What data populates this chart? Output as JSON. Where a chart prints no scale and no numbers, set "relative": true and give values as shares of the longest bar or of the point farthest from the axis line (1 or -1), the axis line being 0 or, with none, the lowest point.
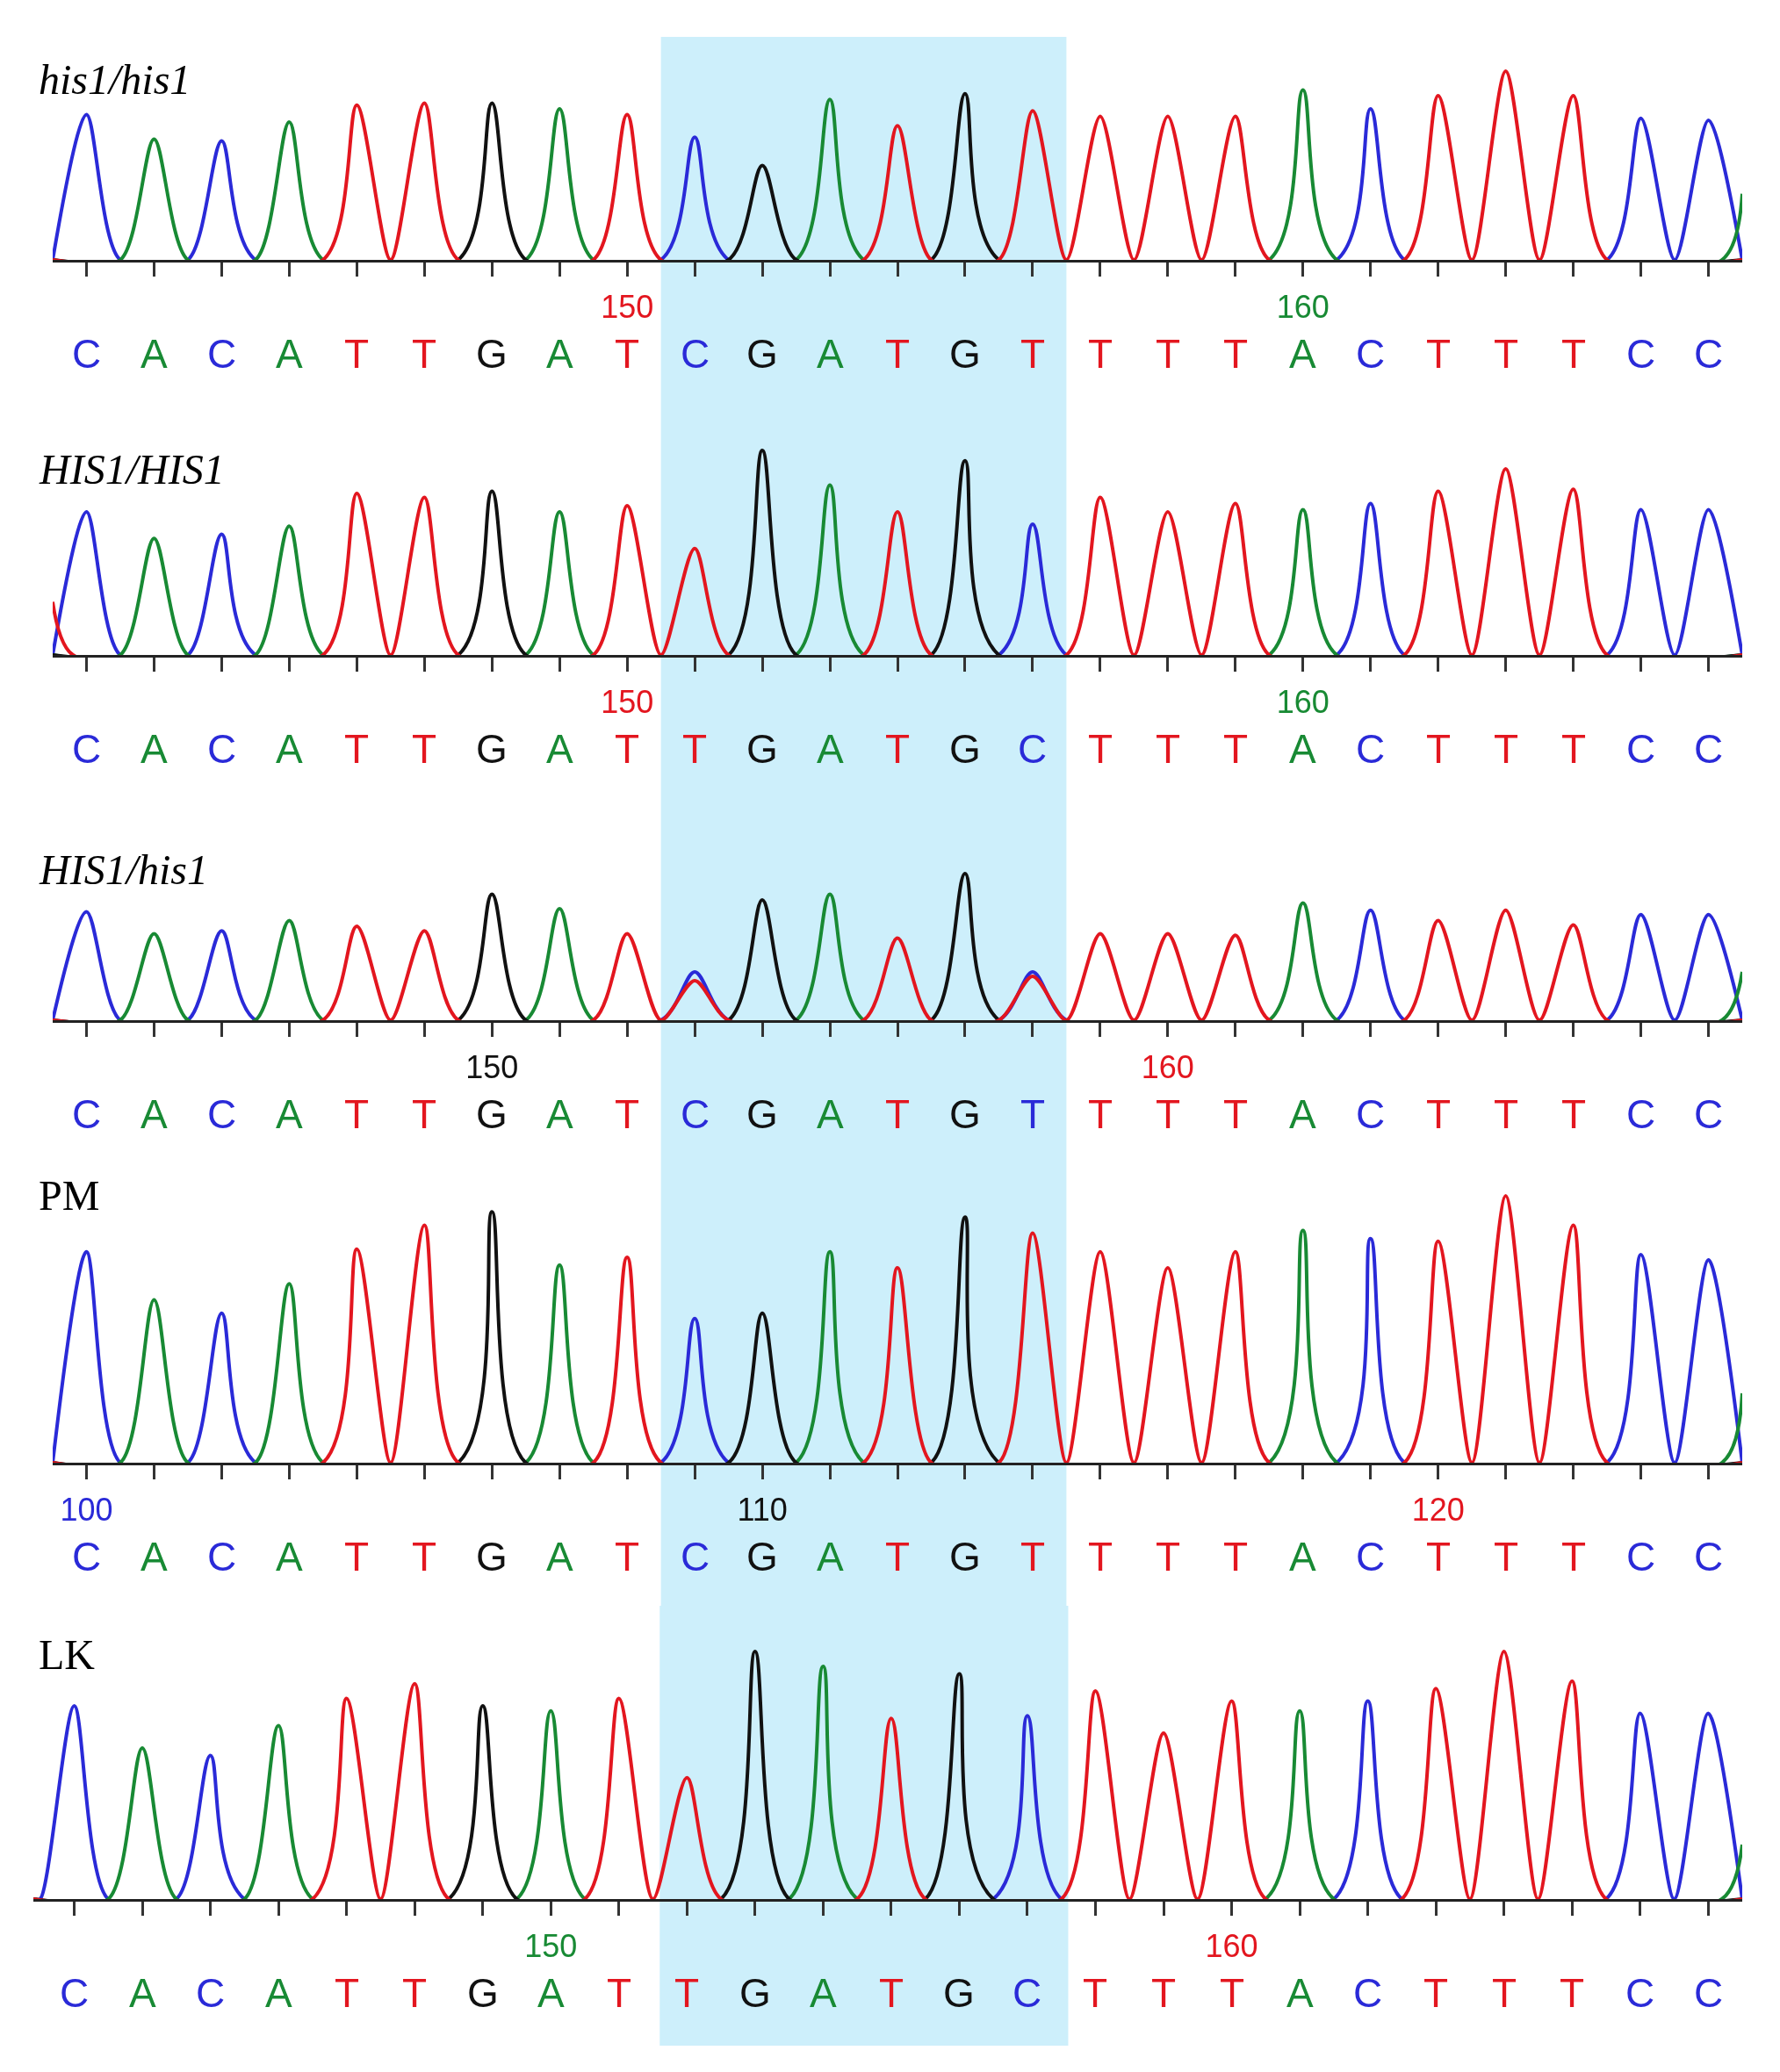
{
  "chart_data": [
    {
      "type": "line",
      "relative": true,
      "title": "his1/his1",
      "xlim": [
        141.5,
        166.5
      ],
      "xticks": [
        {
          "value": 142,
          "label": null
        },
        {
          "value": 143,
          "label": null
        },
        {
          "value": 144,
          "label": null
        },
        {
          "value": 145,
          "label": null
        },
        {
          "value": 146,
          "label": null
        },
        {
          "value": 147,
          "label": null
        },
        {
          "value": 148,
          "label": null
        },
        {
          "value": 149,
          "label": null
        },
        150,
        {
          "value": 151,
          "label": null
        },
        {
          "value": 152,
          "label": null
        },
        {
          "value": 153,
          "label": null
        },
        {
          "value": 154,
          "label": null
        },
        {
          "value": 155,
          "label": null
        },
        {
          "value": 156,
          "label": null
        },
        {
          "value": 157,
          "label": null
        },
        {
          "value": 158,
          "label": null
        },
        {
          "value": 159,
          "label": null
        },
        160,
        {
          "value": 161,
          "label": null
        },
        {
          "value": 162,
          "label": null
        },
        {
          "value": 163,
          "label": null
        },
        {
          "value": 164,
          "label": null
        },
        {
          "value": 165,
          "label": null
        },
        {
          "value": 166,
          "label": null
        }
      ],
      "annotations": [
        "C",
        "A",
        "C",
        "A",
        "T",
        "T",
        "G",
        "A",
        "T",
        "C",
        "G",
        "A",
        "T",
        "G",
        "T",
        "T",
        "T",
        "T",
        "A",
        "C",
        "T",
        "T",
        "T",
        "C",
        "C"
      ],
      "bands": [
        {
          "axis": "x",
          "from": 150.5,
          "to": 156.5,
          "color": "#cdeffb"
        }
      ],
      "series": [
        {
          "color": "#2a2ad8",
          "x": [
            141.5,
            142,
            142.5,
            143.5,
            144,
            144.5,
            150.5,
            151,
            151.5,
            160.5,
            161,
            161.5,
            164.5,
            165,
            165.5,
            166,
            166.5
          ],
          "values": [
            0,
            0.77,
            0,
            0,
            0.63,
            0,
            0,
            0.65,
            0,
            0,
            0.8,
            0,
            0,
            0.75,
            0,
            0.74,
            0
          ]
        },
        {
          "color": "#188a34",
          "x": [
            141.5,
            142.5,
            143,
            143.5,
            144.5,
            145,
            145.5,
            148.5,
            149,
            149.5,
            152.5,
            153,
            153.5,
            159.5,
            160,
            160.5,
            166.2,
            166.5
          ],
          "values": [
            0,
            0,
            0.64,
            0,
            0,
            0.73,
            0,
            0,
            0.8,
            0,
            0,
            0.85,
            0,
            0,
            0.9,
            0,
            0,
            0.35
          ]
        },
        {
          "color": "#111111",
          "x": [
            141.5,
            147.5,
            148,
            148.5,
            151.5,
            152,
            152.5,
            154.5,
            155,
            155.5,
            166.5
          ],
          "values": [
            0,
            0,
            0.83,
            0,
            0,
            0.5,
            0,
            0,
            0.88,
            0,
            0
          ]
        },
        {
          "color": "#e3161f",
          "x": [
            141.5,
            145.5,
            146,
            146.5,
            147,
            147.5,
            149.5,
            150,
            150.5,
            153.5,
            154,
            154.5,
            155.5,
            156,
            156.5,
            157,
            157.5,
            158,
            158.5,
            159,
            159.5,
            161.5,
            162,
            162.5,
            163,
            163.5,
            164,
            164.5,
            166.5
          ],
          "values": [
            0,
            0,
            0.82,
            0,
            0.83,
            0,
            0,
            0.77,
            0,
            0,
            0.71,
            0,
            0,
            0.79,
            0,
            0.76,
            0,
            0.76,
            0,
            0.76,
            0,
            0,
            0.87,
            0,
            1.0,
            0,
            0.87,
            0,
            0
          ]
        }
      ]
    },
    {
      "type": "line",
      "relative": true,
      "title": "HIS1/HIS1",
      "xlim": [
        141.5,
        166.5
      ],
      "xticks": [
        {
          "value": 142,
          "label": null
        },
        {
          "value": 143,
          "label": null
        },
        {
          "value": 144,
          "label": null
        },
        {
          "value": 145,
          "label": null
        },
        {
          "value": 146,
          "label": null
        },
        {
          "value": 147,
          "label": null
        },
        {
          "value": 148,
          "label": null
        },
        {
          "value": 149,
          "label": null
        },
        150,
        {
          "value": 151,
          "label": null
        },
        {
          "value": 152,
          "label": null
        },
        {
          "value": 153,
          "label": null
        },
        {
          "value": 154,
          "label": null
        },
        {
          "value": 155,
          "label": null
        },
        {
          "value": 156,
          "label": null
        },
        {
          "value": 157,
          "label": null
        },
        {
          "value": 158,
          "label": null
        },
        {
          "value": 159,
          "label": null
        },
        160,
        {
          "value": 161,
          "label": null
        },
        {
          "value": 162,
          "label": null
        },
        {
          "value": 163,
          "label": null
        },
        {
          "value": 164,
          "label": null
        },
        {
          "value": 165,
          "label": null
        },
        {
          "value": 166,
          "label": null
        }
      ],
      "annotations": [
        "C",
        "A",
        "C",
        "A",
        "T",
        "T",
        "G",
        "A",
        "T",
        "T",
        "G",
        "A",
        "T",
        "G",
        "C",
        "T",
        "T",
        "T",
        "A",
        "C",
        "T",
        "T",
        "T",
        "C",
        "C"
      ],
      "bands": [
        {
          "axis": "x",
          "from": 150.5,
          "to": 156.5,
          "color": "#cdeffb"
        }
      ],
      "series": [
        {
          "color": "#2a2ad8",
          "x": [
            141.5,
            142,
            142.5,
            143.5,
            144,
            144.5,
            155.5,
            156,
            156.5,
            160.5,
            161,
            161.5,
            164.5,
            165,
            165.5,
            166,
            166.5
          ],
          "values": [
            0,
            0.7,
            0,
            0,
            0.59,
            0,
            0,
            0.64,
            0,
            0,
            0.74,
            0,
            0,
            0.71,
            0,
            0.71,
            0
          ]
        },
        {
          "color": "#188a34",
          "x": [
            141.5,
            142.5,
            143,
            143.5,
            144.5,
            145,
            145.5,
            148.5,
            149,
            149.5,
            152.5,
            153,
            153.5,
            159.5,
            160,
            160.5,
            166.5
          ],
          "values": [
            0,
            0,
            0.57,
            0,
            0,
            0.63,
            0,
            0,
            0.7,
            0,
            0,
            0.83,
            0,
            0,
            0.71,
            0,
            0
          ]
        },
        {
          "color": "#111111",
          "x": [
            141.5,
            147.5,
            148,
            148.5,
            151.5,
            152,
            152.5,
            154.5,
            155,
            155.5,
            166.5
          ],
          "values": [
            0,
            0,
            0.8,
            0,
            0,
            1.0,
            0,
            0,
            0.95,
            0,
            0
          ]
        },
        {
          "color": "#e3161f",
          "x": [
            141.5,
            141.8,
            145.5,
            146,
            146.5,
            147,
            147.5,
            149.5,
            150,
            150.5,
            151,
            151.5,
            153.5,
            154,
            154.5,
            156.5,
            157,
            157.5,
            158,
            158.5,
            159,
            159.5,
            161.5,
            162,
            162.5,
            163,
            163.5,
            164,
            164.5,
            166.5
          ],
          "values": [
            0.26,
            0,
            0,
            0.79,
            0,
            0.77,
            0,
            0,
            0.73,
            0,
            0.52,
            0,
            0,
            0.7,
            0,
            0,
            0.77,
            0,
            0.7,
            0,
            0.74,
            0,
            0,
            0.8,
            0,
            0.91,
            0,
            0.81,
            0,
            0
          ]
        }
      ]
    },
    {
      "type": "line",
      "relative": true,
      "title": "HIS1/his1",
      "xlim": [
        143.5,
        168.5
      ],
      "xticks": [
        {
          "value": 144,
          "label": null
        },
        {
          "value": 145,
          "label": null
        },
        {
          "value": 146,
          "label": null
        },
        {
          "value": 147,
          "label": null
        },
        {
          "value": 148,
          "label": null
        },
        {
          "value": 149,
          "label": null
        },
        150,
        {
          "value": 151,
          "label": null
        },
        {
          "value": 152,
          "label": null
        },
        {
          "value": 153,
          "label": null
        },
        {
          "value": 154,
          "label": null
        },
        {
          "value": 155,
          "label": null
        },
        {
          "value": 156,
          "label": null
        },
        {
          "value": 157,
          "label": null
        },
        {
          "value": 158,
          "label": null
        },
        {
          "value": 159,
          "label": null
        },
        160,
        {
          "value": 161,
          "label": null
        },
        {
          "value": 162,
          "label": null
        },
        {
          "value": 163,
          "label": null
        },
        {
          "value": 164,
          "label": null
        },
        {
          "value": 165,
          "label": null
        },
        {
          "value": 166,
          "label": null
        },
        {
          "value": 167,
          "label": null
        },
        {
          "value": 168,
          "label": null
        }
      ],
      "annotations": [
        "C",
        "A",
        "C",
        "A",
        "T",
        "T",
        "G",
        "A",
        "T",
        "C",
        "G",
        "A",
        "T",
        "G",
        "T",
        "T",
        "T",
        "T",
        "A",
        "C",
        "T",
        "T",
        "T",
        "C",
        "C"
      ],
      "bands": [
        {
          "axis": "x",
          "from": 152.5,
          "to": 158.5,
          "color": "#cdeffb"
        }
      ],
      "series": [
        {
          "color": "#2a2ad8",
          "x": [
            143.5,
            144,
            144.5,
            145.5,
            146,
            146.5,
            152.5,
            153,
            153.5,
            157.5,
            158,
            158.5,
            162.5,
            163,
            163.5,
            166.5,
            167,
            167.5,
            168,
            168.5
          ],
          "values": [
            0,
            0.74,
            0,
            0,
            0.61,
            0,
            0,
            0.33,
            0,
            0,
            0.33,
            0,
            0,
            0.75,
            0,
            0,
            0.72,
            0,
            0.72,
            0
          ]
        },
        {
          "color": "#188a34",
          "x": [
            143.5,
            144.5,
            145,
            145.5,
            146.5,
            147,
            147.5,
            150.5,
            151,
            151.5,
            154.5,
            155,
            155.5,
            161.5,
            162,
            162.5,
            168.2,
            168.5
          ],
          "values": [
            0,
            0,
            0.59,
            0,
            0,
            0.68,
            0,
            0,
            0.76,
            0,
            0,
            0.86,
            0,
            0,
            0.8,
            0,
            0,
            0.33
          ]
        },
        {
          "color": "#111111",
          "x": [
            143.5,
            149.5,
            150,
            150.5,
            153.5,
            154,
            154.5,
            156.5,
            157,
            157.5,
            168.5
          ],
          "values": [
            0,
            0,
            0.86,
            0,
            0,
            0.82,
            0,
            0,
            1.0,
            0,
            0
          ]
        },
        {
          "color": "#e3161f",
          "x": [
            143.5,
            147.5,
            148,
            148.5,
            149,
            149.5,
            151.5,
            152,
            152.5,
            153,
            153.5,
            155.5,
            156,
            156.5,
            157.5,
            158,
            158.5,
            159,
            159.5,
            160,
            160.5,
            161,
            161.5,
            163.5,
            164,
            164.5,
            165,
            165.5,
            166,
            166.5,
            168.5
          ],
          "values": [
            0,
            0,
            0.64,
            0,
            0.61,
            0,
            0,
            0.59,
            0,
            0.27,
            0,
            0,
            0.56,
            0,
            0,
            0.3,
            0,
            0.59,
            0,
            0.59,
            0,
            0.58,
            0,
            0,
            0.68,
            0,
            0.75,
            0,
            0.65,
            0,
            0
          ]
        }
      ]
    },
    {
      "type": "line",
      "relative": true,
      "title": "PM",
      "xlim": [
        99.5,
        124.5
      ],
      "xticks": [
        100,
        {
          "value": 101,
          "label": null
        },
        {
          "value": 102,
          "label": null
        },
        {
          "value": 103,
          "label": null
        },
        {
          "value": 104,
          "label": null
        },
        {
          "value": 105,
          "label": null
        },
        {
          "value": 106,
          "label": null
        },
        {
          "value": 107,
          "label": null
        },
        {
          "value": 108,
          "label": null
        },
        {
          "value": 109,
          "label": null
        },
        110,
        {
          "value": 111,
          "label": null
        },
        {
          "value": 112,
          "label": null
        },
        {
          "value": 113,
          "label": null
        },
        {
          "value": 114,
          "label": null
        },
        {
          "value": 115,
          "label": null
        },
        {
          "value": 116,
          "label": null
        },
        {
          "value": 117,
          "label": null
        },
        {
          "value": 118,
          "label": null
        },
        {
          "value": 119,
          "label": null
        },
        120,
        {
          "value": 121,
          "label": null
        },
        {
          "value": 122,
          "label": null
        },
        {
          "value": 123,
          "label": null
        },
        {
          "value": 124,
          "label": null
        }
      ],
      "annotations": [
        "C",
        "A",
        "C",
        "A",
        "T",
        "T",
        "G",
        "A",
        "T",
        "C",
        "G",
        "A",
        "T",
        "G",
        "T",
        "T",
        "T",
        "T",
        "A",
        "C",
        "T",
        "T",
        "T",
        "C",
        "C"
      ],
      "bands": [
        {
          "axis": "x",
          "from": 108.5,
          "to": 114.5,
          "color": "#cdeffb"
        }
      ],
      "series": [
        {
          "color": "#2a2ad8",
          "x": [
            99.5,
            100,
            100.5,
            101.5,
            102,
            102.5,
            108.5,
            109,
            109.5,
            118.5,
            119,
            119.5,
            122.5,
            123,
            123.5,
            124,
            124.5
          ],
          "values": [
            0,
            0.79,
            0,
            0,
            0.56,
            0,
            0,
            0.54,
            0,
            0,
            0.84,
            0,
            0,
            0.78,
            0,
            0.76,
            0
          ]
        },
        {
          "color": "#188a34",
          "x": [
            99.5,
            100.5,
            101,
            101.5,
            102.5,
            103,
            103.5,
            106.5,
            107,
            107.5,
            110.5,
            111,
            111.5,
            117.5,
            118,
            118.5,
            124.2,
            124.5
          ],
          "values": [
            0,
            0,
            0.61,
            0,
            0,
            0.67,
            0,
            0,
            0.74,
            0,
            0,
            0.79,
            0,
            0,
            0.87,
            0,
            0,
            0.26
          ]
        },
        {
          "color": "#111111",
          "x": [
            99.5,
            105.5,
            106,
            106.5,
            109.5,
            110,
            110.5,
            112.5,
            113,
            113.5,
            124.5
          ],
          "values": [
            0,
            0,
            0.94,
            0,
            0,
            0.56,
            0,
            0,
            0.92,
            0,
            0
          ]
        },
        {
          "color": "#e3161f",
          "x": [
            99.5,
            103.5,
            104,
            104.5,
            105,
            105.5,
            107.5,
            108,
            108.5,
            111.5,
            112,
            112.5,
            113.5,
            114,
            114.5,
            115,
            115.5,
            116,
            116.5,
            117,
            117.5,
            119.5,
            120,
            120.5,
            121,
            121.5,
            122,
            122.5,
            124.5
          ],
          "values": [
            0,
            0,
            0.8,
            0,
            0.89,
            0,
            0,
            0.77,
            0,
            0,
            0.73,
            0,
            0,
            0.86,
            0,
            0.79,
            0,
            0.73,
            0,
            0.79,
            0,
            0,
            0.83,
            0,
            1.0,
            0,
            0.89,
            0,
            0
          ]
        }
      ]
    },
    {
      "type": "line",
      "relative": true,
      "title": "LK",
      "xlim": [
        142.4,
        167.5
      ],
      "xticks": [
        {
          "value": 143,
          "label": null
        },
        {
          "value": 144,
          "label": null
        },
        {
          "value": 145,
          "label": null
        },
        {
          "value": 146,
          "label": null
        },
        {
          "value": 147,
          "label": null
        },
        {
          "value": 148,
          "label": null
        },
        {
          "value": 149,
          "label": null
        },
        150,
        {
          "value": 151,
          "label": null
        },
        {
          "value": 152,
          "label": null
        },
        {
          "value": 153,
          "label": null
        },
        {
          "value": 154,
          "label": null
        },
        {
          "value": 155,
          "label": null
        },
        {
          "value": 156,
          "label": null
        },
        {
          "value": 157,
          "label": null
        },
        {
          "value": 158,
          "label": null
        },
        {
          "value": 159,
          "label": null
        },
        160,
        {
          "value": 161,
          "label": null
        },
        {
          "value": 162,
          "label": null
        },
        {
          "value": 163,
          "label": null
        },
        {
          "value": 164,
          "label": null
        },
        {
          "value": 165,
          "label": null
        },
        {
          "value": 166,
          "label": null
        },
        {
          "value": 167,
          "label": null
        }
      ],
      "annotations": [
        "C",
        "A",
        "C",
        "A",
        "T",
        "T",
        "G",
        "A",
        "T",
        "T",
        "G",
        "A",
        "T",
        "G",
        "C",
        "T",
        "T",
        "T",
        "A",
        "C",
        "T",
        "T",
        "T",
        "C",
        "C"
      ],
      "bands": [
        {
          "axis": "x",
          "from": 151.6,
          "to": 157.6,
          "color": "#cdeffb"
        }
      ],
      "series": [
        {
          "color": "#2a2ad8",
          "x": [
            142.4,
            142.5,
            143,
            143.5,
            144.5,
            145,
            145.5,
            156.5,
            157,
            157.5,
            161.5,
            162,
            162.5,
            165.5,
            166,
            166.5,
            167,
            167.5
          ],
          "values": [
            0,
            0,
            0.78,
            0,
            0,
            0.58,
            0,
            0,
            0.74,
            0,
            0,
            0.8,
            0,
            0,
            0.75,
            0,
            0.75,
            0
          ]
        },
        {
          "color": "#188a34",
          "x": [
            142.4,
            143.5,
            144,
            144.5,
            145.5,
            146,
            146.5,
            149.5,
            150,
            150.5,
            153.5,
            154,
            154.5,
            160.5,
            161,
            161.5,
            167.2,
            167.5
          ],
          "values": [
            0,
            0,
            0.61,
            0,
            0,
            0.7,
            0,
            0,
            0.76,
            0,
            0,
            0.94,
            0,
            0,
            0.76,
            0,
            0,
            0.22
          ]
        },
        {
          "color": "#111111",
          "x": [
            142.4,
            148.5,
            149,
            149.5,
            152.5,
            153,
            153.5,
            155.5,
            156,
            156.5,
            167.5
          ],
          "values": [
            0,
            0,
            0.78,
            0,
            0,
            1.0,
            0,
            0,
            0.91,
            0,
            0
          ]
        },
        {
          "color": "#e3161f",
          "x": [
            142.4,
            146.5,
            147,
            147.5,
            148,
            148.5,
            150.5,
            151,
            151.5,
            152,
            152.5,
            154.5,
            155,
            155.5,
            157.5,
            158,
            158.5,
            159,
            159.5,
            160,
            160.5,
            162.5,
            163,
            163.5,
            164,
            164.5,
            165,
            165.5,
            167.5
          ],
          "values": [
            0,
            0,
            0.81,
            0,
            0.87,
            0,
            0,
            0.81,
            0,
            0.49,
            0,
            0,
            0.73,
            0,
            0,
            0.84,
            0,
            0.67,
            0,
            0.8,
            0,
            0,
            0.85,
            0,
            1.0,
            0,
            0.88,
            0,
            0
          ]
        }
      ]
    }
  ]
}
